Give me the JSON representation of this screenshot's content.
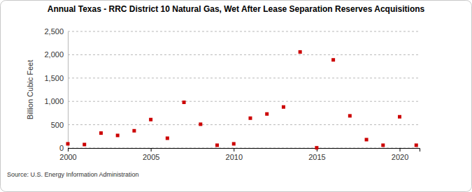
{
  "chart_data": {
    "type": "scatter",
    "title": "Annual Texas - RRC District 10 Natural Gas, Wet After Lease Separation Reserves Acquisitions",
    "y_label": "Billion Cubic Feet",
    "source": "Source: U.S. Energy Information Administration",
    "x": [
      2000,
      2001,
      2002,
      2003,
      2004,
      2005,
      2006,
      2007,
      2008,
      2009,
      2010,
      2011,
      2012,
      2013,
      2014,
      2015,
      2016,
      2017,
      2018,
      2019,
      2020,
      2021
    ],
    "values": [
      90,
      75,
      320,
      270,
      370,
      610,
      210,
      980,
      510,
      60,
      90,
      640,
      730,
      880,
      2060,
      5,
      1890,
      690,
      180,
      60,
      670,
      60
    ],
    "color": "#cc0000",
    "marker": "square",
    "xlim": [
      2000,
      2021.2
    ],
    "xticks": [
      2000,
      2005,
      2010,
      2015,
      2020
    ],
    "ylim": [
      0,
      2500
    ],
    "yticks": [
      0,
      500,
      {
        "value": 1000,
        "label": "1,000"
      },
      {
        "value": 1500,
        "label": "1,500"
      },
      {
        "value": 2000,
        "label": "2,000"
      },
      {
        "value": 2500,
        "label": "2,500"
      }
    ],
    "grid": true
  }
}
